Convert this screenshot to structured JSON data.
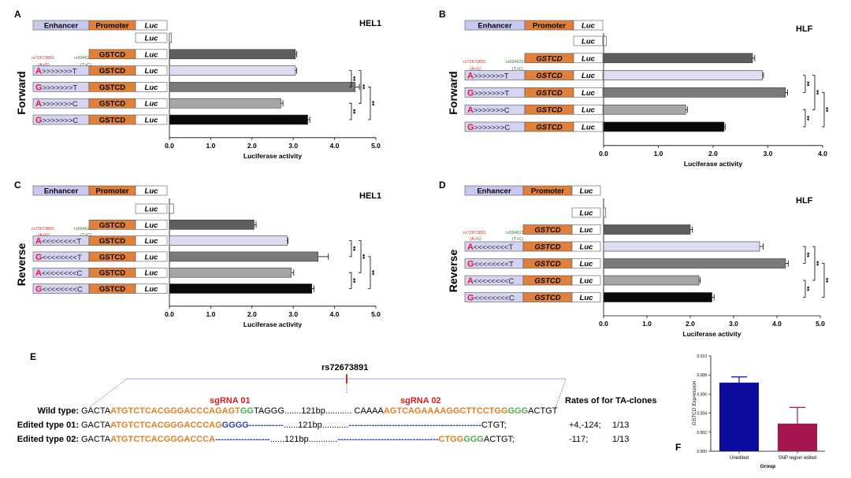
{
  "construct_labels": {
    "enhancer": "Enhancer",
    "promoter": "Promoter",
    "luc": "Luc",
    "gstcd": "GSTCD"
  },
  "snp_labels": {
    "snp1": "rs72673891",
    "snp1_allele": "(A>G)",
    "snp2": "rs59462153",
    "snp2_allele": "(T>C)"
  },
  "sig_mark": "**",
  "chart_data": [
    {
      "type": "bar",
      "panel": "A",
      "title": "HEL1",
      "orientation_label": "Forward",
      "xlabel": "Luciferase activity",
      "ticks": [
        "0.0",
        "1.0",
        "2.0",
        "3.0",
        "4.0",
        "5.0"
      ],
      "xlim": [
        0,
        5
      ],
      "constructs": [
        "",
        "",
        "A>>>>>>>T",
        "G>>>>>>>T",
        "A>>>>>>>C",
        "G>>>>>>>C"
      ],
      "values": [
        0.05,
        3.05,
        3.05,
        4.5,
        2.7,
        3.35
      ],
      "errors": [
        0,
        0.03,
        0.03,
        0.1,
        0.05,
        0.05
      ],
      "gstcd_italic": false
    },
    {
      "type": "bar",
      "panel": "B",
      "title": "HLF",
      "orientation_label": "Forward",
      "xlabel": "Luciferase activity",
      "ticks": [
        "0.0",
        "1.0",
        "2.0",
        "3.0",
        "4.0"
      ],
      "xlim": [
        0,
        4
      ],
      "constructs": [
        "",
        "",
        "A>>>>>>>T",
        "G>>>>>>>T",
        "A>>>>>>>C",
        "G>>>>>>>C"
      ],
      "values": [
        0.05,
        2.72,
        2.9,
        3.32,
        1.5,
        2.2
      ],
      "errors": [
        0,
        0.04,
        0.02,
        0.04,
        0.03,
        0.02
      ],
      "gstcd_italic": true
    },
    {
      "type": "bar",
      "panel": "C",
      "title": "HEL1",
      "orientation_label": "Reverse",
      "xlabel": "Luciferase activity",
      "ticks": [
        "0.0",
        "1.0",
        "2.0",
        "3.0",
        "4.0",
        "5.0"
      ],
      "xlim": [
        0,
        5
      ],
      "constructs": [
        "",
        "",
        "A<<<<<<<<T",
        "G<<<<<<<<T",
        "A<<<<<<<<C",
        "G<<<<<<<<C"
      ],
      "values": [
        0.1,
        2.05,
        2.85,
        3.6,
        2.95,
        3.45
      ],
      "errors": [
        0,
        0.05,
        0.02,
        0.25,
        0.06,
        0.05
      ],
      "gstcd_italic": false
    },
    {
      "type": "bar",
      "panel": "D",
      "title": "HLF",
      "orientation_label": "Reverse",
      "xlabel": "Luciferase activity",
      "ticks": [
        "0.0",
        "1.0",
        "2.0",
        "3.0",
        "4.0",
        "5.0"
      ],
      "xlim": [
        0,
        5
      ],
      "constructs": [
        "",
        "",
        "A<<<<<<<<T",
        "G<<<<<<<<T",
        "A<<<<<<<<C",
        "G<<<<<<<<C"
      ],
      "values": [
        0.05,
        2.0,
        3.6,
        4.2,
        2.2,
        2.5
      ],
      "errors": [
        0,
        0.05,
        0.08,
        0.06,
        0.03,
        0.05
      ],
      "gstcd_italic": true
    },
    {
      "type": "bar",
      "panel": "F",
      "ylabel": "GSTCD Expression",
      "xlabel": "Group",
      "categories": [
        "Unedited",
        "SNP region edited"
      ],
      "values": [
        0.0072,
        0.0029
      ],
      "errors": [
        0.0006,
        0.0017
      ],
      "yticks": [
        "0.000",
        "0.002",
        "0.004",
        "0.006",
        "0.008",
        "0.010"
      ],
      "ylim": [
        0,
        0.01
      ],
      "colors": [
        "#0b0b9e",
        "#a31650"
      ]
    }
  ],
  "panel_e": {
    "label": "E",
    "snp": "rs72673891",
    "sgrna1": "sgRNA 01",
    "sgrna2": "sgRNA 02",
    "rates_header": "Rates of for TA-clones",
    "rows": [
      {
        "name": "Wild type:",
        "segments": [
          {
            "t": "GACTA",
            "c": "#000"
          },
          {
            "t": "ATGTCTCACGGGACCCAGAGT",
            "c": "#e67e22"
          },
          {
            "t": "GG",
            "c": "#4caf50"
          },
          {
            "t": "TAGGG.......121bp...........  CAAAA",
            "c": "#000"
          },
          {
            "t": "AGTCAGAAAAGGCTTCCTGG",
            "c": "#e67e22"
          },
          {
            "t": "GGG",
            "c": "#4caf50"
          },
          {
            "t": "ACTGT",
            "c": "#000"
          }
        ],
        "change": "",
        "rate": ""
      },
      {
        "name": "Edited type 01:",
        "segments": [
          {
            "t": "GACTA",
            "c": "#000"
          },
          {
            "t": "ATGTCTCACGGGACCCAG",
            "c": "#e67e22"
          },
          {
            "t": "GGGG",
            "c": "#2f3fbf"
          },
          {
            "t": "------------",
            "c": "#2f3fbf"
          },
          {
            "t": "......121bp...........",
            "c": "#000"
          },
          {
            "t": "----------------------------------------------",
            "c": "#2f3fbf"
          },
          {
            "t": "CTGT;",
            "c": "#000"
          }
        ],
        "change": "+4,-124;",
        "rate": "1/13"
      },
      {
        "name": "Edited type 02:",
        "segments": [
          {
            "t": "GACTA",
            "c": "#000"
          },
          {
            "t": "ATGTCTCACGGGACCCA",
            "c": "#e67e22"
          },
          {
            "t": "-------------------",
            "c": "#2f3fbf"
          },
          {
            "t": "......121bp............",
            "c": "#000"
          },
          {
            "t": "-----------------------------------",
            "c": "#2f3fbf"
          },
          {
            "t": "CTGG",
            "c": "#e67e22"
          },
          {
            "t": "GGG",
            "c": "#4caf50"
          },
          {
            "t": "ACTGT;",
            "c": "#000"
          }
        ],
        "change": "-117;",
        "rate": "1/13"
      }
    ]
  }
}
